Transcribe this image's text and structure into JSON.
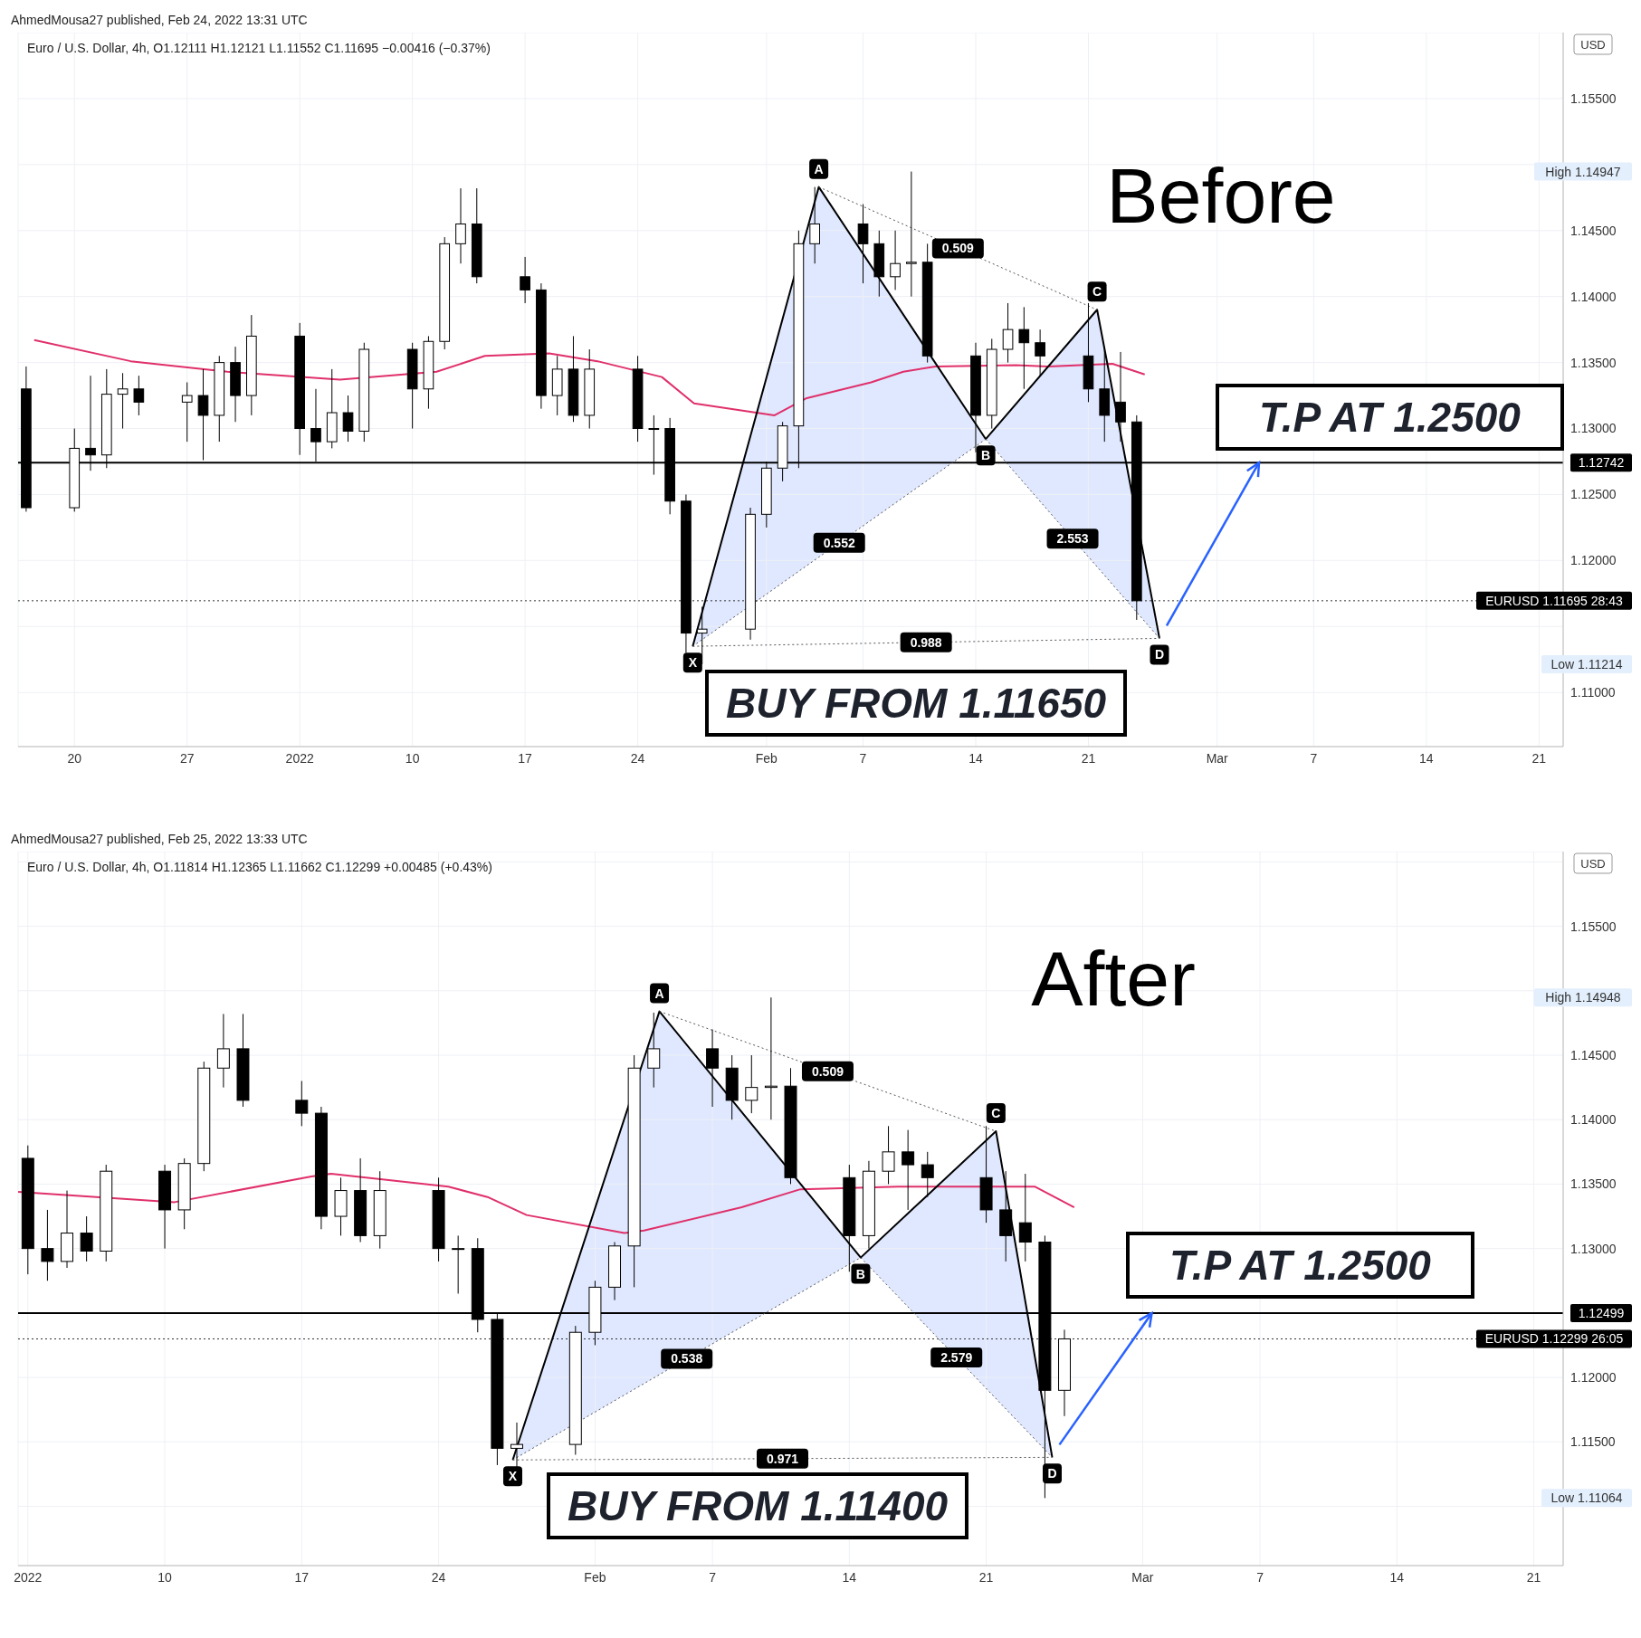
{
  "chart_data": [
    {
      "type": "candlestick",
      "title": "AhmedMousa27 published, Feb 24, 2022 13:31 UTC",
      "subtitle": "Euro / U.S. Dollar, 4h, O1.12111 H1.12121 L1.11552 C1.11695 −0.00416 (−0.37%)",
      "x": [
        "2021-12-17",
        "2021-12-20",
        "2021-12-21",
        "2021-12-22",
        "2021-12-23",
        "2021-12-24",
        "2021-12-27",
        "2021-12-28",
        "2021-12-29",
        "2021-12-30",
        "2021-12-31",
        "2022-01-03",
        "2022-01-04",
        "2022-01-05",
        "2022-01-06",
        "2022-01-07",
        "2022-01-10",
        "2022-01-11",
        "2022-01-12",
        "2022-01-13",
        "2022-01-14",
        "2022-01-17",
        "2022-01-18",
        "2022-01-19",
        "2022-01-20",
        "2022-01-21",
        "2022-01-24",
        "2022-01-25",
        "2022-01-26",
        "2022-01-27",
        "2022-01-28",
        "2022-01-31",
        "2022-02-01",
        "2022-02-02",
        "2022-02-03",
        "2022-02-04",
        "2022-02-07",
        "2022-02-08",
        "2022-02-09",
        "2022-02-10",
        "2022-02-11",
        "2022-02-14",
        "2022-02-15",
        "2022-02-16",
        "2022-02-17",
        "2022-02-18",
        "2022-02-21",
        "2022-02-22",
        "2022-02-23",
        "2022-02-24"
      ],
      "ohlc": [
        [
          1.133,
          1.1347,
          1.1237,
          1.124
        ],
        [
          1.124,
          1.13,
          1.1237,
          1.1285
        ],
        [
          1.1285,
          1.134,
          1.1268,
          1.128
        ],
        [
          1.128,
          1.1345,
          1.127,
          1.1326
        ],
        [
          1.1326,
          1.1342,
          1.13,
          1.133
        ],
        [
          1.133,
          1.134,
          1.131,
          1.132
        ],
        [
          1.132,
          1.1335,
          1.129,
          1.1325
        ],
        [
          1.1325,
          1.1345,
          1.1276,
          1.131
        ],
        [
          1.131,
          1.1355,
          1.129,
          1.135
        ],
        [
          1.135,
          1.1362,
          1.1305,
          1.1325
        ],
        [
          1.1325,
          1.1386,
          1.131,
          1.137
        ],
        [
          1.137,
          1.138,
          1.128,
          1.13
        ],
        [
          1.13,
          1.133,
          1.1275,
          1.129
        ],
        [
          1.129,
          1.1345,
          1.1285,
          1.1312
        ],
        [
          1.1312,
          1.1325,
          1.129,
          1.1298
        ],
        [
          1.1298,
          1.1365,
          1.129,
          1.136
        ],
        [
          1.136,
          1.1365,
          1.13,
          1.133
        ],
        [
          1.133,
          1.137,
          1.1315,
          1.1366
        ],
        [
          1.1366,
          1.1445,
          1.136,
          1.144
        ],
        [
          1.144,
          1.1482,
          1.1425,
          1.1455
        ],
        [
          1.1455,
          1.1482,
          1.141,
          1.1415
        ],
        [
          1.1415,
          1.143,
          1.1395,
          1.1405
        ],
        [
          1.1405,
          1.141,
          1.1315,
          1.1325
        ],
        [
          1.1325,
          1.1355,
          1.131,
          1.1345
        ],
        [
          1.1345,
          1.137,
          1.1305,
          1.131
        ],
        [
          1.131,
          1.136,
          1.13,
          1.1345
        ],
        [
          1.1345,
          1.1355,
          1.129,
          1.13
        ],
        [
          1.13,
          1.131,
          1.1265,
          1.13
        ],
        [
          1.13,
          1.1308,
          1.1235,
          1.1245
        ],
        [
          1.1245,
          1.125,
          1.113,
          1.1145
        ],
        [
          1.1145,
          1.1165,
          1.11214,
          1.1148
        ],
        [
          1.1148,
          1.124,
          1.114,
          1.1235
        ],
        [
          1.1235,
          1.1275,
          1.1225,
          1.127
        ],
        [
          1.127,
          1.1305,
          1.126,
          1.1302
        ],
        [
          1.1302,
          1.145,
          1.127,
          1.144
        ],
        [
          1.144,
          1.1483,
          1.1425,
          1.1455
        ],
        [
          1.1455,
          1.147,
          1.141,
          1.144
        ],
        [
          1.144,
          1.145,
          1.14,
          1.1415
        ],
        [
          1.1415,
          1.145,
          1.1405,
          1.1425
        ],
        [
          1.1425,
          1.14947,
          1.14,
          1.1426
        ],
        [
          1.1426,
          1.144,
          1.135,
          1.1355
        ],
        [
          1.1355,
          1.1365,
          1.1282,
          1.131
        ],
        [
          1.131,
          1.1368,
          1.13,
          1.136
        ],
        [
          1.136,
          1.1395,
          1.135,
          1.1375
        ],
        [
          1.1375,
          1.1392,
          1.133,
          1.1365
        ],
        [
          1.1365,
          1.1375,
          1.134,
          1.1355
        ],
        [
          1.1355,
          1.1395,
          1.132,
          1.133
        ],
        [
          1.133,
          1.136,
          1.129,
          1.131
        ],
        [
          1.132,
          1.1358,
          1.129,
          1.1305
        ],
        [
          1.1305,
          1.131,
          1.1155,
          1.11695
        ]
      ],
      "series": [
        {
          "type": "line",
          "color": "#e0306a",
          "x": [
            "2021-12-17T12:00",
            "2021-12-23T12:00",
            "2021-12-29T12:00",
            "2022-01-05T12:00",
            "2022-01-11T12:00",
            "2022-01-14T12:00",
            "2022-01-18T12:00",
            "2022-01-21T12:00",
            "2022-01-25T12:00",
            "2022-01-27T12:00",
            "2022-02-01T12:00",
            "2022-02-03T12:00",
            "2022-02-07T12:00",
            "2022-02-09T12:00",
            "2022-02-11T12:00",
            "2022-02-16T12:00",
            "2022-02-18T12:00",
            "2022-02-22T12:00",
            "2022-02-24T12:00"
          ],
          "values": [
            1.1367,
            1.1351,
            1.1343,
            1.1337,
            1.1343,
            1.1355,
            1.1357,
            1.1351,
            1.1339,
            1.1319,
            1.131,
            1.1323,
            1.1335,
            1.1343,
            1.1347,
            1.1348,
            1.1347,
            1.1349,
            1.1341
          ]
        },
        {
          "type": "line",
          "color": "#000000",
          "x": [
            "2022-01-27T10:00",
            "2022-02-04T06:00",
            "2022-02-14T15:00",
            "2022-02-21T13:00",
            "2022-02-25T10:00"
          ],
          "values": [
            1.1135,
            1.1483,
            1.1292,
            1.139,
            1.1141
          ]
        },
        {
          "type": "line",
          "color": "#555555",
          "line_style": "dotted",
          "x": [
            "2022-02-04T06:00",
            "2022-02-21T13:00"
          ],
          "values": [
            1.1483,
            1.139
          ]
        },
        {
          "type": "line",
          "color": "#555555",
          "line_style": "dotted",
          "x": [
            "2022-01-27T10:00",
            "2022-02-14T15:00"
          ],
          "values": [
            1.1135,
            1.1292
          ]
        },
        {
          "type": "line",
          "color": "#555555",
          "line_style": "dotted",
          "x": [
            "2022-02-14T15:00",
            "2022-02-25T10:00"
          ],
          "values": [
            1.1292,
            1.1141
          ]
        },
        {
          "type": "line",
          "color": "#555555",
          "line_style": "dotted",
          "x": [
            "2022-01-27T10:00",
            "2022-02-25T10:00"
          ],
          "values": [
            1.1135,
            1.1141
          ]
        }
      ],
      "xlim": [
        "2021-12-16T12:00",
        "2022-03-22T12:00"
      ],
      "xticks": [
        {
          "value": "2021-12-20",
          "label": "20"
        },
        {
          "value": "2021-12-27",
          "label": "27"
        },
        {
          "value": "2022-01-03",
          "label": "2022"
        },
        {
          "value": "2022-01-10",
          "label": "10"
        },
        {
          "value": "2022-01-17",
          "label": "17"
        },
        {
          "value": "2022-01-24",
          "label": "24"
        },
        {
          "value": "2022-02-01",
          "label": "Feb"
        },
        {
          "value": "2022-02-07",
          "label": "7"
        },
        {
          "value": "2022-02-14",
          "label": "14"
        },
        {
          "value": "2022-02-21",
          "label": "21"
        },
        {
          "value": "2022-03-01",
          "label": "Mar"
        },
        {
          "value": "2022-03-07",
          "label": "7"
        },
        {
          "value": "2022-03-14",
          "label": "14"
        },
        {
          "value": "2022-03-21",
          "label": "21"
        }
      ],
      "ylim": [
        1.1059,
        1.16
      ],
      "yticks": [
        {
          "value": 1.11,
          "label": "1.11000"
        },
        {
          "value": 1.115,
          "label": null
        },
        {
          "value": 1.12,
          "label": "1.12000"
        },
        {
          "value": 1.125,
          "label": "1.12500"
        },
        {
          "value": 1.13,
          "label": "1.13000"
        },
        {
          "value": 1.135,
          "label": "1.13500"
        },
        {
          "value": 1.14,
          "label": "1.14000"
        },
        {
          "value": 1.145,
          "label": "1.14500"
        },
        {
          "value": 1.15,
          "label": null
        },
        {
          "value": 1.155,
          "label": "1.15500"
        },
        {
          "value": 1.16,
          "label": null
        }
      ],
      "grid": true,
      "ref_lines": [
        {
          "axis": "y",
          "value": 1.12742,
          "label": "1.12742",
          "color": "#000000",
          "line_style": "solid"
        },
        {
          "axis": "y",
          "value": 1.11695,
          "label": "EURUSD 1.11695 28:43",
          "color": "#333333",
          "line_style": "dotted"
        }
      ],
      "annotations": [
        "Before",
        "T.P AT 1.2500",
        "BUY FROM 1.11650",
        "USD",
        "High 1.14947",
        "Low 1.11214",
        {
          "text": "X",
          "x": "2022-01-27T10:00",
          "y": 1.1135
        },
        {
          "text": "A",
          "x": "2022-02-04T06:00",
          "y": 1.1483
        },
        {
          "text": "B",
          "x": "2022-02-14T15:00",
          "y": 1.1292
        },
        {
          "text": "C",
          "x": "2022-02-21T13:00",
          "y": 1.139
        },
        {
          "text": "D",
          "x": "2022-02-25T10:00",
          "y": 1.1141
        },
        "0.509",
        "0.552",
        "2.553",
        "0.988"
      ]
    },
    {
      "type": "candlestick",
      "title": "AhmedMousa27 published, Feb 25, 2022 13:33 UTC",
      "subtitle": "Euro / U.S. Dollar, 4h, O1.11814 H1.12365 L1.11662 C1.12299 +0.00485 (+0.43%)",
      "x": [
        "2022-01-03",
        "2022-01-04",
        "2022-01-05",
        "2022-01-06",
        "2022-01-07",
        "2022-01-10",
        "2022-01-11",
        "2022-01-12",
        "2022-01-13",
        "2022-01-14",
        "2022-01-17",
        "2022-01-18",
        "2022-01-19",
        "2022-01-20",
        "2022-01-21",
        "2022-01-24",
        "2022-01-25",
        "2022-01-26",
        "2022-01-27",
        "2022-01-28",
        "2022-01-31",
        "2022-02-01",
        "2022-02-02",
        "2022-02-03",
        "2022-02-04",
        "2022-02-07",
        "2022-02-08",
        "2022-02-09",
        "2022-02-10",
        "2022-02-11",
        "2022-02-14",
        "2022-02-15",
        "2022-02-16",
        "2022-02-17",
        "2022-02-18",
        "2022-02-21",
        "2022-02-22",
        "2022-02-23",
        "2022-02-24",
        "2022-02-25"
      ],
      "ohlc": [
        [
          1.137,
          1.138,
          1.128,
          1.13
        ],
        [
          1.13,
          1.133,
          1.1275,
          1.129
        ],
        [
          1.129,
          1.1345,
          1.1285,
          1.1312
        ],
        [
          1.1312,
          1.1325,
          1.129,
          1.1298
        ],
        [
          1.1298,
          1.1365,
          1.129,
          1.136
        ],
        [
          1.136,
          1.1365,
          1.13,
          1.133
        ],
        [
          1.133,
          1.137,
          1.1315,
          1.1366
        ],
        [
          1.1366,
          1.1445,
          1.136,
          1.144
        ],
        [
          1.144,
          1.1482,
          1.1425,
          1.1455
        ],
        [
          1.1455,
          1.1482,
          1.141,
          1.1415
        ],
        [
          1.1415,
          1.143,
          1.1395,
          1.1405
        ],
        [
          1.1405,
          1.141,
          1.1315,
          1.1325
        ],
        [
          1.1325,
          1.1355,
          1.131,
          1.1345
        ],
        [
          1.1345,
          1.137,
          1.1305,
          1.131
        ],
        [
          1.131,
          1.136,
          1.13,
          1.1345
        ],
        [
          1.1345,
          1.1355,
          1.129,
          1.13
        ],
        [
          1.13,
          1.131,
          1.1265,
          1.13
        ],
        [
          1.13,
          1.1308,
          1.1235,
          1.1245
        ],
        [
          1.1245,
          1.125,
          1.1132,
          1.1145
        ],
        [
          1.1145,
          1.1165,
          1.113,
          1.1148
        ],
        [
          1.1148,
          1.124,
          1.114,
          1.1235
        ],
        [
          1.1235,
          1.1275,
          1.1225,
          1.127
        ],
        [
          1.127,
          1.1305,
          1.126,
          1.1302
        ],
        [
          1.1302,
          1.145,
          1.127,
          1.144
        ],
        [
          1.144,
          1.1483,
          1.1425,
          1.1455
        ],
        [
          1.1455,
          1.147,
          1.141,
          1.144
        ],
        [
          1.144,
          1.145,
          1.14,
          1.1415
        ],
        [
          1.1415,
          1.145,
          1.1405,
          1.1425
        ],
        [
          1.1425,
          1.14948,
          1.14,
          1.1426
        ],
        [
          1.1426,
          1.144,
          1.135,
          1.1355
        ],
        [
          1.1355,
          1.1365,
          1.1282,
          1.131
        ],
        [
          1.131,
          1.1368,
          1.13,
          1.136
        ],
        [
          1.136,
          1.1395,
          1.135,
          1.1375
        ],
        [
          1.1375,
          1.1392,
          1.133,
          1.1365
        ],
        [
          1.1365,
          1.1375,
          1.134,
          1.1355
        ],
        [
          1.1355,
          1.1395,
          1.132,
          1.133
        ],
        [
          1.133,
          1.136,
          1.129,
          1.131
        ],
        [
          1.132,
          1.1358,
          1.129,
          1.1305
        ],
        [
          1.1305,
          1.131,
          1.11064,
          1.119
        ],
        [
          1.119,
          1.1237,
          1.117,
          1.12299
        ]
      ],
      "series": [
        {
          "type": "line",
          "color": "#e0306a",
          "x": [
            "2022-01-02T12:00",
            "2022-01-10T12:00",
            "2022-01-17T12:00",
            "2022-01-18T12:00",
            "2022-01-24T12:00",
            "2022-01-26T12:00",
            "2022-01-28T12:00",
            "2022-02-02T12:00",
            "2022-02-03T12:00",
            "2022-02-08T12:00",
            "2022-02-11T12:00",
            "2022-02-16T12:00",
            "2022-02-21T12:00",
            "2022-02-23T12:00",
            "2022-02-25T12:00"
          ],
          "values": [
            1.1344,
            1.1336,
            1.1356,
            1.1358,
            1.1348,
            1.134,
            1.1326,
            1.1312,
            1.1314,
            1.1332,
            1.1346,
            1.1348,
            1.1348,
            1.1348,
            1.1332
          ]
        },
        {
          "type": "line",
          "color": "#000000",
          "x": [
            "2022-01-27T19:00",
            "2022-02-04T07:00",
            "2022-02-14T14:00",
            "2022-02-21T12:00",
            "2022-02-24T09:00"
          ],
          "values": [
            1.1136,
            1.1484,
            1.1293,
            1.1391,
            1.1138
          ]
        },
        {
          "type": "line",
          "color": "#555555",
          "line_style": "dotted",
          "x": [
            "2022-02-04T07:00",
            "2022-02-21T12:00"
          ],
          "values": [
            1.1484,
            1.1391
          ]
        },
        {
          "type": "line",
          "color": "#555555",
          "line_style": "dotted",
          "x": [
            "2022-01-27T19:00",
            "2022-02-14T14:00"
          ],
          "values": [
            1.1136,
            1.1293
          ]
        },
        {
          "type": "line",
          "color": "#555555",
          "line_style": "dotted",
          "x": [
            "2022-02-14T14:00",
            "2022-02-24T09:00"
          ],
          "values": [
            1.1293,
            1.1138
          ]
        },
        {
          "type": "line",
          "color": "#555555",
          "line_style": "dotted",
          "x": [
            "2022-01-27T19:00",
            "2022-02-24T09:00"
          ],
          "values": [
            1.1136,
            1.1138
          ]
        }
      ],
      "xlim": [
        "2022-01-02T12:00",
        "2022-03-22T12:00"
      ],
      "xticks": [
        {
          "value": "2022-01-03",
          "label": "2022"
        },
        {
          "value": "2022-01-10",
          "label": "10"
        },
        {
          "value": "2022-01-17",
          "label": "17"
        },
        {
          "value": "2022-01-24",
          "label": "24"
        },
        {
          "value": "2022-02-01",
          "label": "Feb"
        },
        {
          "value": "2022-02-07",
          "label": "7"
        },
        {
          "value": "2022-02-14",
          "label": "14"
        },
        {
          "value": "2022-02-21",
          "label": "21"
        },
        {
          "value": "2022-03-01",
          "label": "Mar"
        },
        {
          "value": "2022-03-07",
          "label": "7"
        },
        {
          "value": "2022-03-14",
          "label": "14"
        },
        {
          "value": "2022-03-21",
          "label": "21"
        }
      ],
      "ylim": [
        1.1054,
        1.1608
      ],
      "yticks": [
        {
          "value": 1.11,
          "label": null
        },
        {
          "value": 1.115,
          "label": "1.11500"
        },
        {
          "value": 1.12,
          "label": "1.12000"
        },
        {
          "value": 1.125,
          "label": null
        },
        {
          "value": 1.13,
          "label": "1.13000"
        },
        {
          "value": 1.135,
          "label": "1.13500"
        },
        {
          "value": 1.14,
          "label": "1.14000"
        },
        {
          "value": 1.145,
          "label": "1.14500"
        },
        {
          "value": 1.15,
          "label": null
        },
        {
          "value": 1.155,
          "label": "1.15500"
        },
        {
          "value": 1.16,
          "label": null
        }
      ],
      "grid": true,
      "ref_lines": [
        {
          "axis": "y",
          "value": 1.12499,
          "label": "1.12499",
          "color": "#000000",
          "line_style": "solid"
        },
        {
          "axis": "y",
          "value": 1.12299,
          "label": "EURUSD 1.12299 26:05",
          "color": "#333333",
          "line_style": "dotted"
        }
      ],
      "annotations": [
        "After",
        "T.P AT 1.2500",
        "BUY FROM 1.11400",
        "USD",
        "High 1.14948",
        "Low 1.11064",
        {
          "text": "X",
          "x": "2022-01-27T19:00",
          "y": 1.1136
        },
        {
          "text": "A",
          "x": "2022-02-04T07:00",
          "y": 1.1484
        },
        {
          "text": "B",
          "x": "2022-02-14T14:00",
          "y": 1.1293
        },
        {
          "text": "C",
          "x": "2022-02-21T12:00",
          "y": 1.1391
        },
        {
          "text": "D",
          "x": "2022-02-24T09:00",
          "y": 1.1138
        },
        "0.509",
        "0.538",
        "2.579",
        "0.971"
      ]
    }
  ]
}
